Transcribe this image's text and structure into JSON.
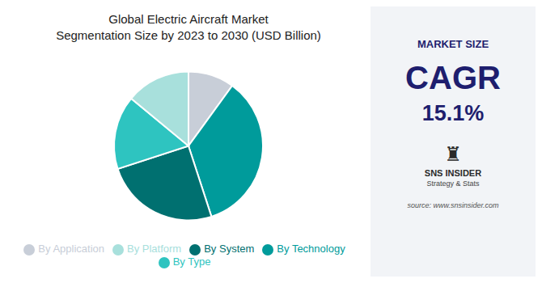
{
  "chart_data": {
    "type": "pie",
    "title": "Global Electric Aircraft Market",
    "subtitle": "Segmentation Size by 2023 to 2030 (USD Billion)",
    "categories": [
      "By Application",
      "By Technology",
      "By System",
      "By Type",
      "By Platform"
    ],
    "values": [
      10,
      35,
      25,
      16,
      14
    ],
    "colors": [
      "#c8ced8",
      "#009b9b",
      "#007070",
      "#2ec4c0",
      "#a8e0dc"
    ],
    "legend": "bottom",
    "annotations": [
      "MARKET SIZE",
      "CAGR",
      "15.1%",
      "♜",
      "SNS INSIDER",
      "Strategy & Stats",
      "source: www.snsinsider.com"
    ]
  }
}
